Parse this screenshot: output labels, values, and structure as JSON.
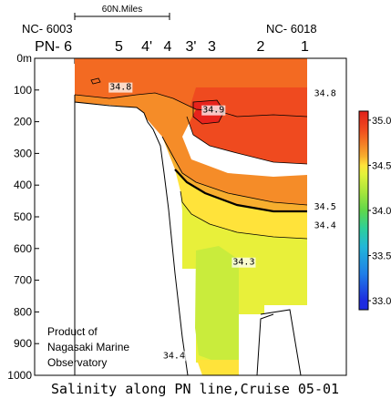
{
  "chart_data": {
    "type": "heatmap",
    "title": "Salinity along PN line,Cruise 05-01",
    "scale_bar_label": "60N.Miles",
    "ylabel": "",
    "xlabel": "",
    "ylim": [
      0,
      1000
    ],
    "y_unit": "m",
    "y_ticks": [
      "0m",
      "100",
      "200",
      "300",
      "400",
      "500",
      "600",
      "700",
      "800",
      "900",
      "1000"
    ],
    "y_tick_values": [
      0,
      100,
      200,
      300,
      400,
      500,
      600,
      700,
      800,
      900,
      1000
    ],
    "station_codes": {
      "left": "NC- 6003",
      "right": "NC- 6018"
    },
    "stations": [
      {
        "label": "PN- 6",
        "pos": 0.0
      },
      {
        "label": "5",
        "pos": 0.19
      },
      {
        "label": "4'",
        "pos": 0.31
      },
      {
        "label": "4",
        "pos": 0.4
      },
      {
        "label": "3'",
        "pos": 0.5
      },
      {
        "label": "3",
        "pos": 0.59
      },
      {
        "label": "2",
        "pos": 0.8
      },
      {
        "label": "1",
        "pos": 0.99
      }
    ],
    "contour_labels": [
      {
        "text": "34.8",
        "pos": 0.15,
        "depth": 88
      },
      {
        "text": "34.8",
        "pos": 1.03,
        "depth": 108
      },
      {
        "text": "34.9",
        "pos": 0.55,
        "depth": 160
      },
      {
        "text": "34.5",
        "pos": 1.03,
        "depth": 465
      },
      {
        "text": "34.4",
        "pos": 1.03,
        "depth": 525
      },
      {
        "text": "34.3",
        "pos": 0.68,
        "depth": 640
      },
      {
        "text": "34.4",
        "pos": 0.38,
        "depth": 935
      }
    ],
    "colorbar": {
      "ticks": [
        "35.0",
        "34.5",
        "34.0",
        "33.5",
        "33.0"
      ],
      "tick_values": [
        35.0,
        34.5,
        34.0,
        33.5,
        33.0
      ],
      "range": [
        32.9,
        35.1
      ]
    },
    "colors": {
      "s35_0": "#e8231c",
      "s34_9": "#ef4a1f",
      "s34_8": "#f36a22",
      "s34_7": "#f58c28",
      "s34_6": "#f7ae2e",
      "s34_5": "#ffe33a",
      "s34_4": "#e8f03a",
      "s34_3": "#c9ec3c",
      "s34_0": "#7fdc3e",
      "s33_5": "#2cc7b7",
      "s33_0": "#1d2be0"
    },
    "annotation": [
      "Product of",
      "Nagasaki Marine",
      "Observatory"
    ]
  }
}
